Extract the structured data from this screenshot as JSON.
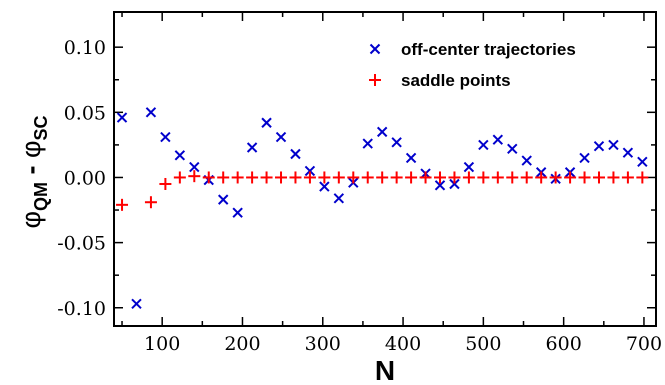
{
  "chart_data": {
    "type": "scatter",
    "xlabel": "N",
    "ylabel": {
      "phi": "φ",
      "sub1": "QM",
      "minus": " - ",
      "sub2": "SC"
    },
    "xlim": [
      40,
      715
    ],
    "ylim": [
      -0.114,
      0.127
    ],
    "xticks": [
      100,
      200,
      300,
      400,
      500,
      600,
      700
    ],
    "xtick_labels": [
      "100",
      "200",
      "300",
      "400",
      "500",
      "600",
      "700"
    ],
    "yticks": [
      -0.1,
      -0.05,
      0.0,
      0.05,
      0.1
    ],
    "ytick_labels": [
      "-0.10",
      "-0.05",
      "0.00",
      "0.05",
      "0.10"
    ],
    "grid": false,
    "legend_position": "top-right",
    "series": [
      {
        "name": "off-center trajectories",
        "marker": "x",
        "color": "#0000cc",
        "points": [
          [
            50,
            0.046
          ],
          [
            68,
            -0.097
          ],
          [
            86,
            0.05
          ],
          [
            104,
            0.031
          ],
          [
            122,
            0.017
          ],
          [
            140,
            0.008
          ],
          [
            158,
            -0.002
          ],
          [
            176,
            -0.017
          ],
          [
            194,
            -0.027
          ],
          [
            212,
            0.023
          ],
          [
            230,
            0.042
          ],
          [
            248,
            0.031
          ],
          [
            266,
            0.018
          ],
          [
            284,
            0.005
          ],
          [
            302,
            -0.007
          ],
          [
            320,
            -0.016
          ],
          [
            338,
            -0.004
          ],
          [
            356,
            0.026
          ],
          [
            374,
            0.035
          ],
          [
            392,
            0.027
          ],
          [
            410,
            0.015
          ],
          [
            428,
            0.003
          ],
          [
            446,
            -0.006
          ],
          [
            464,
            -0.005
          ],
          [
            482,
            0.008
          ],
          [
            500,
            0.025
          ],
          [
            518,
            0.029
          ],
          [
            536,
            0.022
          ],
          [
            554,
            0.013
          ],
          [
            572,
            0.004
          ],
          [
            590,
            -0.001
          ],
          [
            608,
            0.004
          ],
          [
            626,
            0.015
          ],
          [
            644,
            0.024
          ],
          [
            662,
            0.025
          ],
          [
            680,
            0.019
          ],
          [
            698,
            0.012
          ]
        ]
      },
      {
        "name": "saddle points",
        "marker": "+",
        "color": "#ff0000",
        "points": [
          [
            50,
            -0.021
          ],
          [
            86,
            -0.019
          ],
          [
            104,
            -0.005
          ],
          [
            122,
            0.0
          ],
          [
            140,
            0.001
          ],
          [
            158,
            0.0
          ],
          [
            176,
            0.0
          ],
          [
            194,
            0.0
          ],
          [
            212,
            0.0
          ],
          [
            230,
            0.0
          ],
          [
            248,
            0.0
          ],
          [
            266,
            0.0
          ],
          [
            284,
            0.0
          ],
          [
            302,
            0.0
          ],
          [
            320,
            0.0
          ],
          [
            338,
            0.0
          ],
          [
            356,
            0.0
          ],
          [
            374,
            0.0
          ],
          [
            392,
            0.0
          ],
          [
            410,
            0.0
          ],
          [
            428,
            0.0
          ],
          [
            446,
            0.0
          ],
          [
            464,
            0.0
          ],
          [
            482,
            0.0
          ],
          [
            500,
            0.0
          ],
          [
            518,
            0.0
          ],
          [
            536,
            0.0
          ],
          [
            554,
            0.0
          ],
          [
            572,
            0.0
          ],
          [
            590,
            0.0
          ],
          [
            608,
            0.0
          ],
          [
            626,
            0.0
          ],
          [
            644,
            0.0
          ],
          [
            662,
            0.0
          ],
          [
            680,
            0.0
          ],
          [
            698,
            0.0
          ]
        ]
      }
    ]
  }
}
